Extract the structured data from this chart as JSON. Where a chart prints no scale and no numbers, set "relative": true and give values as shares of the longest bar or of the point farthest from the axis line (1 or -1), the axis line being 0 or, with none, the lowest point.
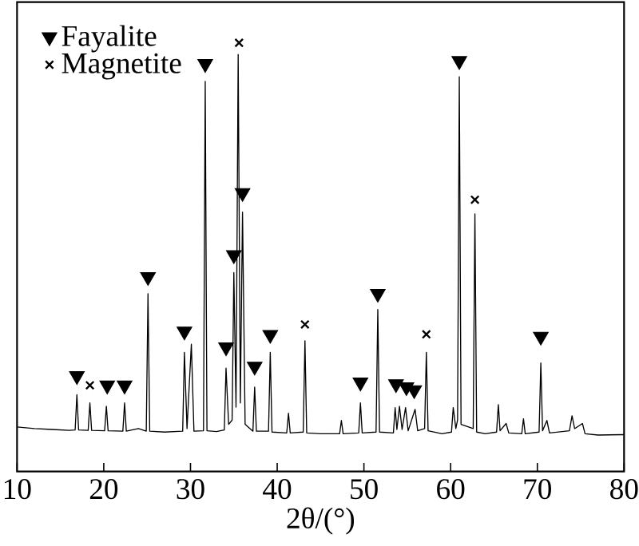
{
  "chart_data": {
    "type": "line",
    "xlabel": "2θ/(°)",
    "relative": true,
    "xlim": [
      10,
      80
    ],
    "xticks": [
      10,
      20,
      30,
      40,
      50,
      60,
      70,
      80
    ],
    "legend": "top left",
    "grid": false,
    "series": [
      {
        "color": "#000000",
        "marker": "none",
        "x": [
          10,
          12,
          14,
          16,
          16.7,
          16.9,
          17.1,
          18.2,
          18.4,
          18.6,
          20.1,
          20.3,
          20.5,
          22.2,
          22.4,
          22.6,
          24.0,
          24.9,
          25.1,
          25.3,
          27,
          29.1,
          29.3,
          29.6,
          30.1,
          30.4,
          31.5,
          31.7,
          31.9,
          33,
          33.9,
          34.1,
          34.4,
          34.8,
          35.0,
          35.25,
          35.5,
          35.75,
          36.0,
          36.3,
          37.2,
          37.4,
          37.6,
          39.0,
          39.2,
          39.4,
          41.1,
          41.3,
          41.5,
          43.0,
          43.2,
          43.4,
          45,
          47.2,
          47.4,
          47.6,
          49.4,
          49.6,
          49.8,
          51.4,
          51.6,
          51.8,
          53.4,
          53.6,
          53.8,
          54.1,
          54.4,
          54.8,
          55.1,
          55.9,
          56.2,
          57.0,
          57.2,
          57.4,
          59,
          60.1,
          60.3,
          60.6,
          60.8,
          61.0,
          61.2,
          62.6,
          62.8,
          63.0,
          64,
          65.3,
          65.5,
          65.7,
          66.4,
          66.7,
          68.2,
          68.4,
          68.6,
          70.2,
          70.4,
          70.6,
          71.1,
          71.4,
          73.7,
          74.0,
          74.3,
          75.2,
          75.5,
          77,
          80
        ],
        "values": [
          0.104,
          0.1,
          0.098,
          0.096,
          0.097,
          0.179,
          0.097,
          0.096,
          0.16,
          0.096,
          0.095,
          0.152,
          0.095,
          0.094,
          0.16,
          0.094,
          0.1,
          0.094,
          0.415,
          0.094,
          0.092,
          0.094,
          0.278,
          0.1,
          0.297,
          0.094,
          0.095,
          0.91,
          0.095,
          0.093,
          0.097,
          0.241,
          0.11,
          0.12,
          0.464,
          0.15,
          0.973,
          0.16,
          0.605,
          0.11,
          0.094,
          0.197,
          0.094,
          0.094,
          0.278,
          0.092,
          0.09,
          0.136,
          0.09,
          0.092,
          0.305,
          0.09,
          0.088,
          0.088,
          0.119,
          0.088,
          0.09,
          0.16,
          0.09,
          0.092,
          0.378,
          0.092,
          0.09,
          0.149,
          0.098,
          0.152,
          0.098,
          0.149,
          0.095,
          0.145,
          0.095,
          0.1,
          0.278,
          0.095,
          0.088,
          0.092,
          0.149,
          0.1,
          0.12,
          0.921,
          0.11,
          0.1,
          0.601,
          0.092,
          0.088,
          0.092,
          0.156,
          0.095,
          0.112,
          0.09,
          0.088,
          0.123,
          0.088,
          0.092,
          0.253,
          0.095,
          0.119,
          0.09,
          0.095,
          0.13,
          0.1,
          0.112,
          0.088,
          0.085,
          0.086
        ]
      },
      {
        "type": "scatter",
        "name": "Fayalite",
        "color": "#000000",
        "marker": "triangle",
        "x": [
          16.9,
          20.4,
          22.4,
          25.1,
          29.3,
          31.7,
          34.1,
          35.0,
          36.0,
          37.4,
          39.2,
          49.6,
          51.6,
          53.7,
          54.9,
          55.8,
          61.0,
          70.4
        ],
        "values": [
          0.223,
          0.201,
          0.201,
          0.454,
          0.327,
          0.951,
          0.29,
          0.505,
          0.65,
          0.245,
          0.319,
          0.208,
          0.415,
          0.204,
          0.197,
          0.19,
          0.958,
          0.315
        ]
      },
      {
        "type": "scatter",
        "name": "Magnetite",
        "color": "#000000",
        "marker": "cross",
        "x": [
          18.4,
          35.6,
          43.2,
          57.2,
          62.8
        ],
        "values": [
          0.201,
          1.0,
          0.343,
          0.32,
          0.634
        ]
      }
    ]
  }
}
